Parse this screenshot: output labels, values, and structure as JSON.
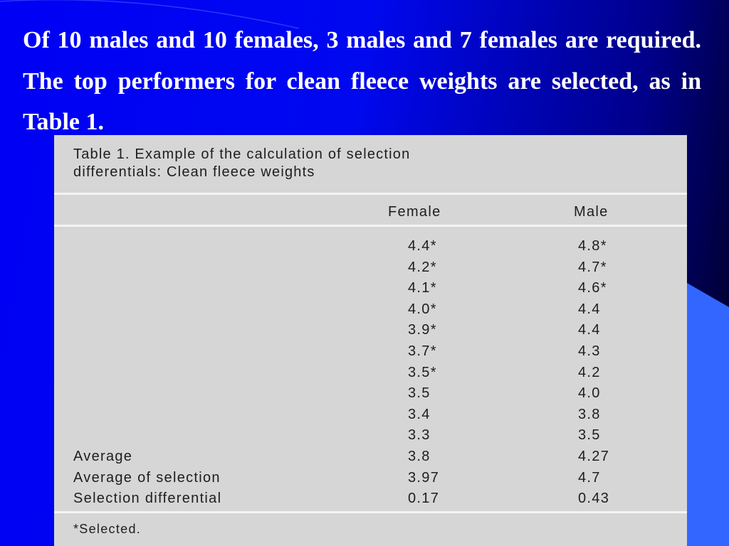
{
  "paragraph": "Of 10 males and 10 females, 3 males and 7 females are required. The top performers for clean fleece weights are selected, as in Table 1.",
  "table": {
    "caption": [
      "Table 1. Example of the calculation of selection",
      "differentials: Clean fleece weights"
    ],
    "header": [
      "Female",
      "Male"
    ],
    "rows": [
      {
        "female": "4.4*",
        "male": "4.8*"
      },
      {
        "female": "4.2*",
        "male": "4.7*"
      },
      {
        "female": "4.1*",
        "male": "4.6*"
      },
      {
        "female": "4.0*",
        "male": "4.4"
      },
      {
        "female": "3.9*",
        "male": "4.4"
      },
      {
        "female": "3.7*",
        "male": "4.3"
      },
      {
        "female": "3.5*",
        "male": "4.2"
      },
      {
        "female": "3.5",
        "male": "4.0"
      },
      {
        "female": "3.4",
        "male": "3.8"
      },
      {
        "female": "3.3",
        "male": "3.5"
      },
      {
        "label": "Average",
        "female": "3.8",
        "male": "4.27"
      },
      {
        "label": "Average of selection",
        "female": "3.97",
        "male": "4.7"
      },
      {
        "label": "Selection differential",
        "female": "0.17",
        "male": "0.43"
      }
    ],
    "footnote": "*Selected."
  }
}
